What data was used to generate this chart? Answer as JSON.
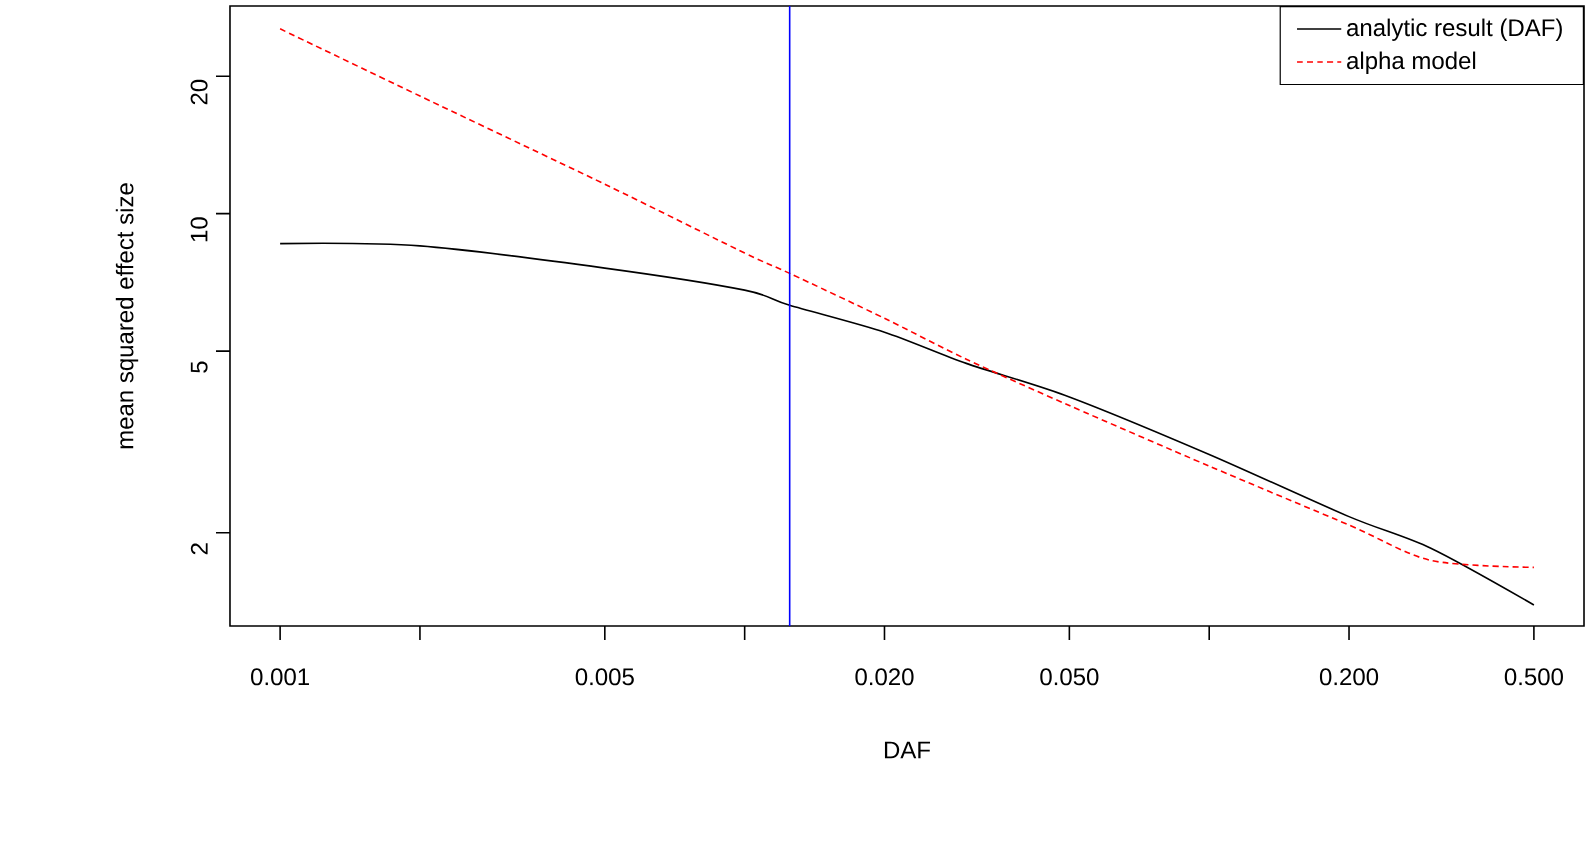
{
  "chart_data": {
    "type": "line",
    "xlabel": "DAF",
    "ylabel": "mean squared effect size",
    "x": [
      0.001,
      0.002,
      0.005,
      0.01,
      0.0125,
      0.02,
      0.03,
      0.05,
      0.1,
      0.2,
      0.3,
      0.5
    ],
    "series": [
      {
        "name": "analytic result (DAF)",
        "color": "#000000",
        "line_style": "solid",
        "values": [
          8.6,
          8.5,
          7.6,
          6.8,
          6.3,
          5.5,
          4.7,
          3.97,
          2.97,
          2.17,
          1.85,
          1.39
        ]
      },
      {
        "name": "alpha model",
        "color": "#ff0000",
        "line_style": "dashed",
        "values": [
          25.4,
          18.1,
          11.6,
          8.2,
          7.4,
          5.9,
          4.8,
          3.8,
          2.8,
          2.08,
          1.74,
          1.68
        ]
      }
    ],
    "log": "xy",
    "xlim": [
      0.00078,
      0.641
    ],
    "ylim": [
      1.25,
      28.5
    ],
    "xticks": [
      0.001,
      {
        "value": 0.002,
        "label": null
      },
      0.005,
      {
        "value": 0.01,
        "label": null
      },
      {
        "value": 0.02,
        "label": "0.020"
      },
      {
        "value": 0.05,
        "label": "0.050"
      },
      {
        "value": 0.1,
        "label": null
      },
      {
        "value": 0.2,
        "label": "0.200"
      },
      {
        "value": 0.5,
        "label": "0.500"
      }
    ],
    "yticks": [
      2,
      5,
      10,
      20
    ],
    "ref_lines": [
      {
        "axis": "x",
        "value": 0.0125,
        "color": "#0000ff"
      }
    ],
    "legend": "top right",
    "grid": false,
    "marker": "none"
  }
}
